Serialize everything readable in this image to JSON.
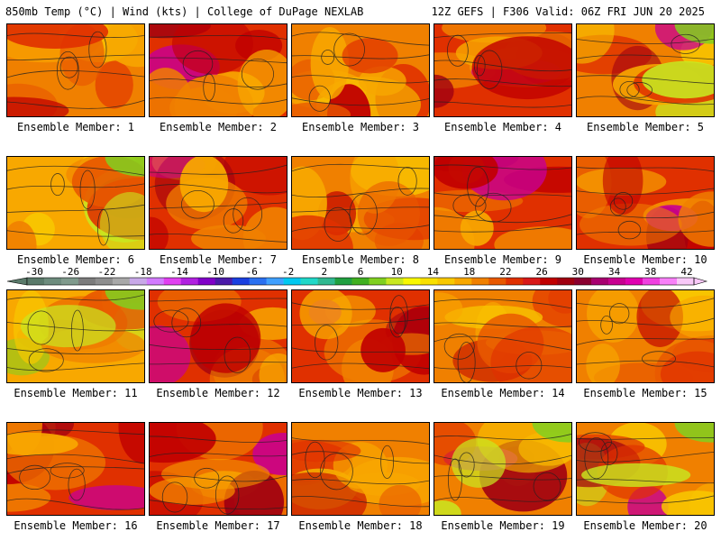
{
  "header": {
    "left": "850mb Temp (°C) | Wind (kts) | College of DuPage NEXLAB",
    "right": "12Z GEFS | F306 Valid: 06Z FRI JUN 20 2025"
  },
  "members": [
    {
      "label": "Ensemble Member: 1",
      "palette": "warm"
    },
    {
      "label": "Ensemble Member: 2",
      "palette": "hot"
    },
    {
      "label": "Ensemble Member: 3",
      "palette": "warm"
    },
    {
      "label": "Ensemble Member: 4",
      "palette": "hot"
    },
    {
      "label": "Ensemble Member: 5",
      "palette": "mixed"
    },
    {
      "label": "Ensemble Member: 6",
      "palette": "cool"
    },
    {
      "label": "Ensemble Member: 7",
      "palette": "hot"
    },
    {
      "label": "Ensemble Member: 8",
      "palette": "warm"
    },
    {
      "label": "Ensemble Member: 9",
      "palette": "hot"
    },
    {
      "label": "Ensemble Member: 10",
      "palette": "hot"
    },
    {
      "label": "Ensemble Member: 11",
      "palette": "cool"
    },
    {
      "label": "Ensemble Member: 12",
      "palette": "hot"
    },
    {
      "label": "Ensemble Member: 13",
      "palette": "hot"
    },
    {
      "label": "Ensemble Member: 14",
      "palette": "warm"
    },
    {
      "label": "Ensemble Member: 15",
      "palette": "warm"
    },
    {
      "label": "Ensemble Member: 16",
      "palette": "hot"
    },
    {
      "label": "Ensemble Member: 17",
      "palette": "hot"
    },
    {
      "label": "Ensemble Member: 18",
      "palette": "warm"
    },
    {
      "label": "Ensemble Member: 19",
      "palette": "mixed"
    },
    {
      "label": "Ensemble Member: 20",
      "palette": "mixed"
    }
  ],
  "colorbar": {
    "ticks": [
      "-30",
      "-26",
      "-22",
      "-18",
      "-14",
      "-10",
      "-6",
      "-2",
      "2",
      "6",
      "10",
      "14",
      "18",
      "22",
      "26",
      "30",
      "34",
      "38",
      "42"
    ],
    "colors": [
      "#5a7a6a",
      "#6d8c7d",
      "#7f9a8c",
      "#7c7c7c",
      "#8e8e8e",
      "#a8a8a8",
      "#c8a8e8",
      "#d27bff",
      "#e040f0",
      "#b020e0",
      "#8000c8",
      "#4a1aa8",
      "#1a40e0",
      "#2a70f0",
      "#40a0ff",
      "#00c8f0",
      "#20d8c8",
      "#30b890",
      "#20a040",
      "#40b020",
      "#80d020",
      "#c8e820",
      "#f8f800",
      "#f8e000",
      "#f8c800",
      "#f8a800",
      "#f08000",
      "#e85800",
      "#e03000",
      "#d81818",
      "#c00000",
      "#a00010",
      "#8a0030",
      "#a80070",
      "#c80090",
      "#e000b0",
      "#f040e0",
      "#f880f8",
      "#f8c8f8"
    ]
  },
  "colors": {
    "background": "#ffffff",
    "contour": "#202020",
    "text": "#000000"
  }
}
